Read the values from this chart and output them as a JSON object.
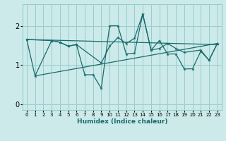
{
  "title": "",
  "xlabel": "Humidex (Indice chaleur)",
  "bg_color": "#cceaea",
  "grid_color": "#99cccc",
  "line_color": "#1a6b6b",
  "xlim": [
    -0.5,
    23.5
  ],
  "ylim": [
    -0.15,
    2.55
  ],
  "xticks": [
    0,
    1,
    2,
    3,
    4,
    5,
    6,
    7,
    8,
    9,
    10,
    11,
    12,
    13,
    14,
    15,
    16,
    17,
    18,
    19,
    20,
    21,
    22,
    23
  ],
  "yticks": [
    0,
    1,
    2
  ],
  "series": [
    {
      "x": [
        0,
        23
      ],
      "y": [
        1.65,
        1.52
      ]
    },
    {
      "x": [
        1,
        23
      ],
      "y": [
        0.72,
        1.55
      ]
    },
    {
      "x": [
        0,
        1,
        3,
        4,
        5,
        6,
        7,
        8,
        9,
        10,
        11,
        12,
        13,
        14,
        15,
        16,
        17,
        18,
        19,
        20,
        21,
        22,
        23
      ],
      "y": [
        1.65,
        0.72,
        1.62,
        1.58,
        1.48,
        1.52,
        0.75,
        0.75,
        0.4,
        2.0,
        2.0,
        1.28,
        1.3,
        2.3,
        1.38,
        1.62,
        1.28,
        1.28,
        0.9,
        0.9,
        1.35,
        1.12,
        1.55
      ]
    },
    {
      "x": [
        0,
        3,
        4,
        5,
        6,
        9,
        10,
        11,
        12,
        13,
        14,
        15,
        16,
        17,
        18,
        19,
        21,
        22,
        23
      ],
      "y": [
        1.65,
        1.62,
        1.58,
        1.48,
        1.52,
        1.05,
        1.48,
        1.7,
        1.55,
        1.68,
        2.3,
        1.38,
        1.42,
        1.55,
        1.42,
        1.32,
        1.38,
        1.12,
        1.55
      ]
    }
  ]
}
